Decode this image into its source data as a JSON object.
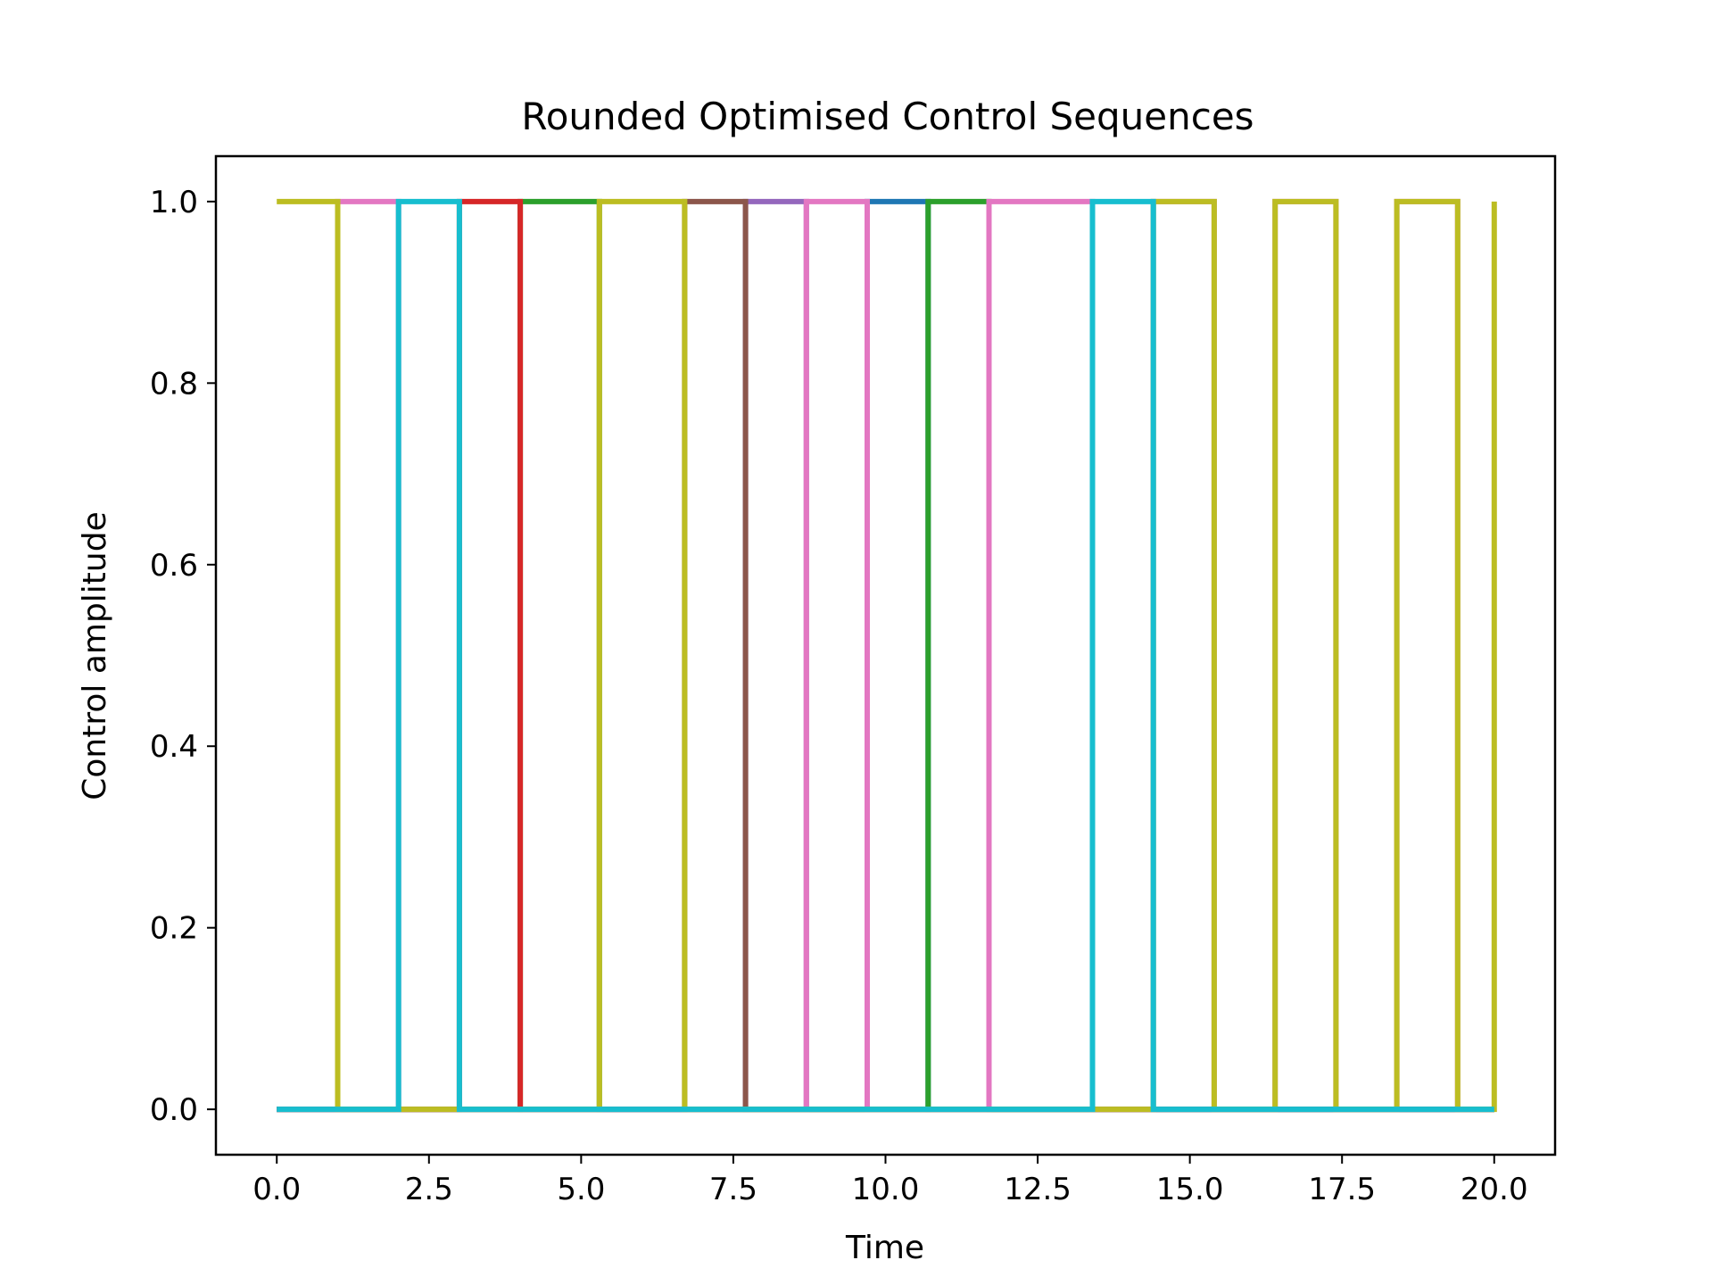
{
  "chart_data": {
    "type": "line",
    "step": "post",
    "title": "Rounded Optimised Control Sequences",
    "xlabel": "Time",
    "ylabel": "Control amplitude",
    "xlim": [
      -1.0,
      21.0
    ],
    "ylim": [
      -0.05,
      1.05
    ],
    "xticks": [
      "0.0",
      "2.5",
      "5.0",
      "7.5",
      "10.0",
      "12.5",
      "15.0",
      "17.5",
      "20.0"
    ],
    "yticks": [
      "0.0",
      "0.2",
      "0.4",
      "0.6",
      "0.8",
      "1.0"
    ],
    "grid": false,
    "legend": "none",
    "series": [
      {
        "color": "#1f77b4",
        "x": [
          0,
          9.7,
          10.7,
          20
        ],
        "y": [
          0,
          1,
          0,
          0
        ]
      },
      {
        "color": "#ff7f0e",
        "x": [
          0,
          20
        ],
        "y": [
          0,
          0
        ]
      },
      {
        "color": "#2ca02c",
        "x": [
          0,
          4.0,
          5.3,
          10.7,
          11.7,
          20
        ],
        "y": [
          0,
          1,
          0,
          1,
          0,
          0
        ]
      },
      {
        "color": "#d62728",
        "x": [
          0,
          3.0,
          4.0,
          20
        ],
        "y": [
          0,
          1,
          0,
          0
        ]
      },
      {
        "color": "#9467bd",
        "x": [
          0,
          7.7,
          8.7,
          20
        ],
        "y": [
          0,
          1,
          0,
          0
        ]
      },
      {
        "color": "#8c564b",
        "x": [
          0,
          6.7,
          7.7,
          20
        ],
        "y": [
          0,
          1,
          0,
          0
        ]
      },
      {
        "color": "#e377c2",
        "x": [
          0,
          1.0,
          2.0,
          8.7,
          9.7,
          11.7,
          13.4,
          14.4,
          15.4,
          16.4,
          17.4,
          18.4,
          19.4,
          20
        ],
        "y": [
          0,
          1,
          0,
          1,
          0,
          1,
          0,
          1,
          0,
          1,
          0,
          1,
          0,
          0
        ]
      },
      {
        "color": "#7f7f7f",
        "x": [
          0,
          20
        ],
        "y": [
          0,
          0
        ]
      },
      {
        "color": "#bcbd22",
        "x": [
          0,
          1.0,
          5.3,
          6.7,
          14.4,
          15.4,
          16.4,
          17.4,
          18.4,
          19.4,
          20
        ],
        "y": [
          1,
          0,
          1,
          0,
          1,
          0,
          1,
          0,
          1,
          0,
          1
        ]
      },
      {
        "color": "#17becf",
        "x": [
          0,
          2.0,
          3.0,
          13.4,
          14.4,
          20
        ],
        "y": [
          0,
          1,
          0,
          1,
          0,
          0
        ]
      }
    ]
  }
}
